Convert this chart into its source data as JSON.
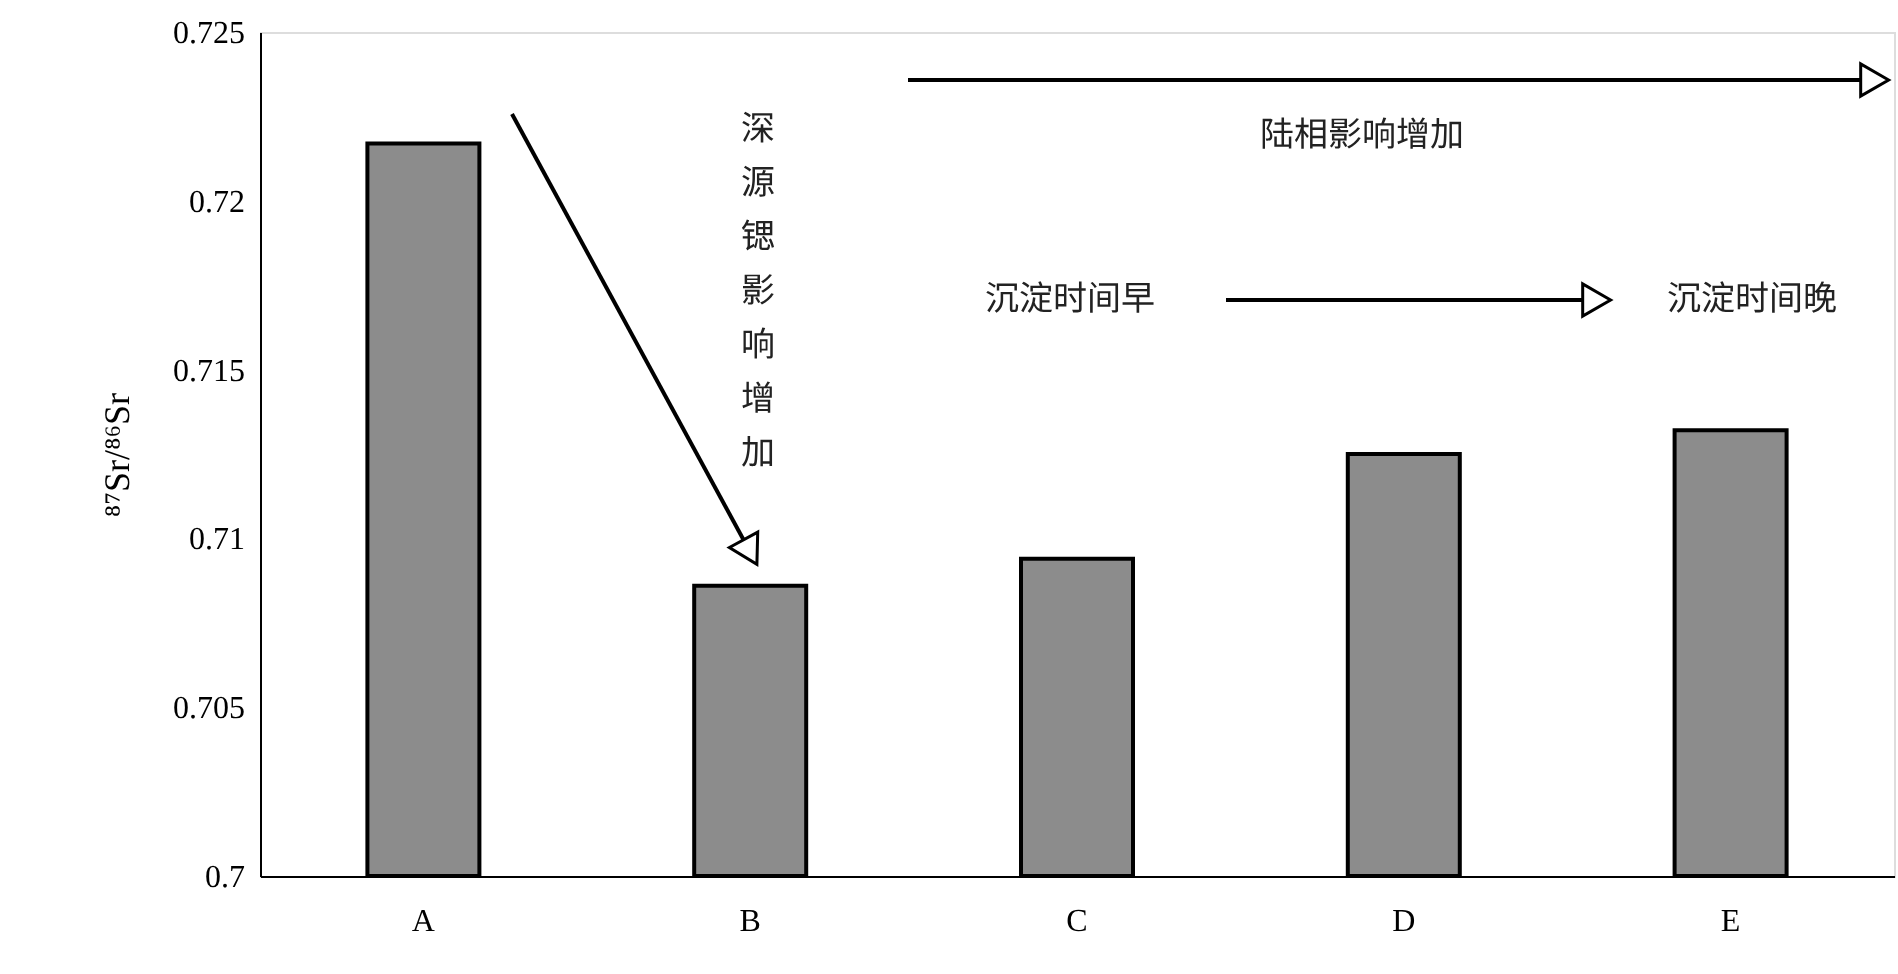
{
  "chart_data": {
    "type": "bar",
    "ylabel": "⁸⁷Sr/⁸⁶Sr",
    "categories": [
      "A",
      "B",
      "C",
      "D",
      "E"
    ],
    "values": [
      0.7217,
      0.7086,
      0.7094,
      0.7125,
      0.7132
    ],
    "color": "#8c8c8c",
    "ylim": [
      0.7,
      0.725
    ],
    "yticks": [
      0.7,
      0.705,
      0.71,
      0.715,
      0.72,
      0.725
    ],
    "grid": false,
    "annotations": [
      "深源锶影响增加",
      "陆相影响增加",
      "沉淀时间早",
      "沉淀时间晚"
    ]
  }
}
